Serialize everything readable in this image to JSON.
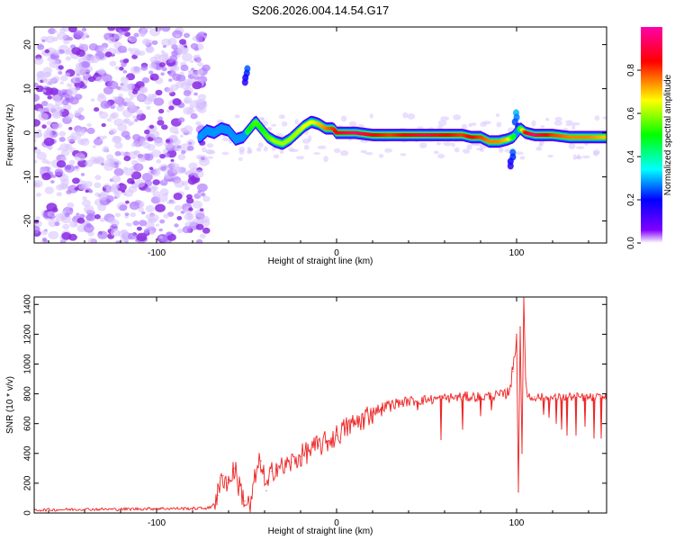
{
  "title": "S206.2026.004.14.54.G17",
  "chart_data": [
    {
      "type": "heatmap",
      "xlabel": "Height of straight line (km)",
      "ylabel": "Frequency (Hz)",
      "xlim": [
        -168,
        150
      ],
      "ylim": [
        -25,
        24
      ],
      "xticks": [
        -100,
        0,
        100
      ],
      "yticks": [
        -20,
        -10,
        0,
        10,
        20
      ],
      "colorbar": {
        "label": "Normalized spectral amplitude",
        "range": [
          0,
          1
        ],
        "ticks": [
          "0.0",
          "0.2",
          "0.4",
          "0.6",
          "0.8"
        ],
        "colors": [
          "#ffffff",
          "#8000ff",
          "#0000ff",
          "#00ffff",
          "#00ff00",
          "#ffff00",
          "#ff0000",
          "#ff00aa"
        ]
      },
      "noise_region_x": [
        -168,
        -76
      ],
      "ridge": {
        "x": [
          -76,
          -72,
          -68,
          -64,
          -60,
          -56,
          -52,
          -48,
          -45,
          -42,
          -38,
          -34,
          -30,
          -26,
          -22,
          -18,
          -14,
          -10,
          -6,
          -2,
          0,
          10,
          20,
          30,
          40,
          50,
          60,
          70,
          75,
          80,
          85,
          90,
          95,
          98,
          100,
          102,
          105,
          110,
          120,
          130,
          140,
          150
        ],
        "freq": [
          -1,
          0.5,
          0,
          1,
          0.5,
          -1.5,
          -1,
          1,
          2.5,
          1,
          -1,
          -2,
          -2.5,
          -1.5,
          0,
          1.5,
          2.5,
          2,
          1,
          1,
          0,
          0,
          -0.5,
          -0.5,
          -0.5,
          -0.5,
          -0.5,
          -0.5,
          -1,
          -1,
          -2,
          -2,
          -1.5,
          -1,
          0,
          1,
          0,
          -0.5,
          -0.5,
          -1,
          -1,
          -1
        ],
        "amplitude": [
          0.3,
          0.4,
          0.4,
          0.45,
          0.4,
          0.35,
          0.4,
          0.5,
          0.55,
          0.5,
          0.55,
          0.6,
          0.6,
          0.6,
          0.6,
          0.65,
          0.65,
          0.7,
          0.75,
          0.8,
          0.85,
          0.95,
          0.85,
          0.8,
          0.85,
          0.9,
          0.85,
          0.8,
          0.85,
          0.8,
          0.75,
          0.75,
          0.7,
          0.5,
          0.4,
          0.5,
          0.85,
          0.95,
          0.8,
          0.75,
          0.75,
          0.7
        ]
      },
      "blobs": [
        {
          "x": -50,
          "freq": 13,
          "amplitude": 0.25
        },
        {
          "x": 100,
          "freq": 3,
          "amplitude": 0.3
        },
        {
          "x": 97,
          "freq": -6,
          "amplitude": 0.25
        }
      ]
    },
    {
      "type": "line",
      "xlabel": "Height of straight line (km)",
      "ylabel": "SNR (10 * v/v)",
      "xlim": [
        -168,
        150
      ],
      "ylim": [
        0,
        1450
      ],
      "xticks": [
        -100,
        0,
        100
      ],
      "yticks": [
        0,
        200,
        400,
        600,
        800,
        1000,
        1200,
        1400
      ],
      "color": "#ee2222",
      "series": [
        {
          "name": "SNR",
          "x": [
            -168,
            -140,
            -120,
            -100,
            -80,
            -70,
            -66,
            -63,
            -60,
            -57,
            -54,
            -51,
            -48,
            -45,
            -42,
            -39,
            -36,
            -33,
            -30,
            -25,
            -20,
            -15,
            -10,
            -5,
            0,
            5,
            10,
            15,
            20,
            25,
            30,
            40,
            50,
            60,
            70,
            80,
            90,
            95,
            98,
            100,
            101,
            102,
            103,
            104,
            105,
            106,
            108,
            110,
            120,
            130,
            140,
            150
          ],
          "y": [
            20,
            25,
            25,
            30,
            30,
            35,
            120,
            250,
            200,
            300,
            180,
            80,
            30,
            250,
            350,
            150,
            280,
            320,
            300,
            340,
            380,
            420,
            450,
            480,
            520,
            570,
            600,
            640,
            680,
            710,
            730,
            750,
            760,
            770,
            780,
            780,
            790,
            800,
            950,
            1200,
            140,
            1250,
            400,
            1450,
            900,
            780,
            770,
            780,
            770,
            780,
            775,
            775
          ]
        }
      ],
      "dips": [
        {
          "x": 15,
          "y": 560
        },
        {
          "x": 20,
          "y": 600
        },
        {
          "x": 25,
          "y": 650
        },
        {
          "x": 30,
          "y": 680
        },
        {
          "x": 45,
          "y": 690
        },
        {
          "x": 58,
          "y": 490
        },
        {
          "x": 70,
          "y": 560
        },
        {
          "x": 80,
          "y": 650
        },
        {
          "x": 86,
          "y": 690
        },
        {
          "x": 115,
          "y": 660
        },
        {
          "x": 118,
          "y": 640
        },
        {
          "x": 122,
          "y": 600
        },
        {
          "x": 125,
          "y": 560
        },
        {
          "x": 128,
          "y": 520
        },
        {
          "x": 133,
          "y": 520
        },
        {
          "x": 138,
          "y": 580
        },
        {
          "x": 143,
          "y": 500
        },
        {
          "x": 147,
          "y": 500
        }
      ]
    }
  ]
}
